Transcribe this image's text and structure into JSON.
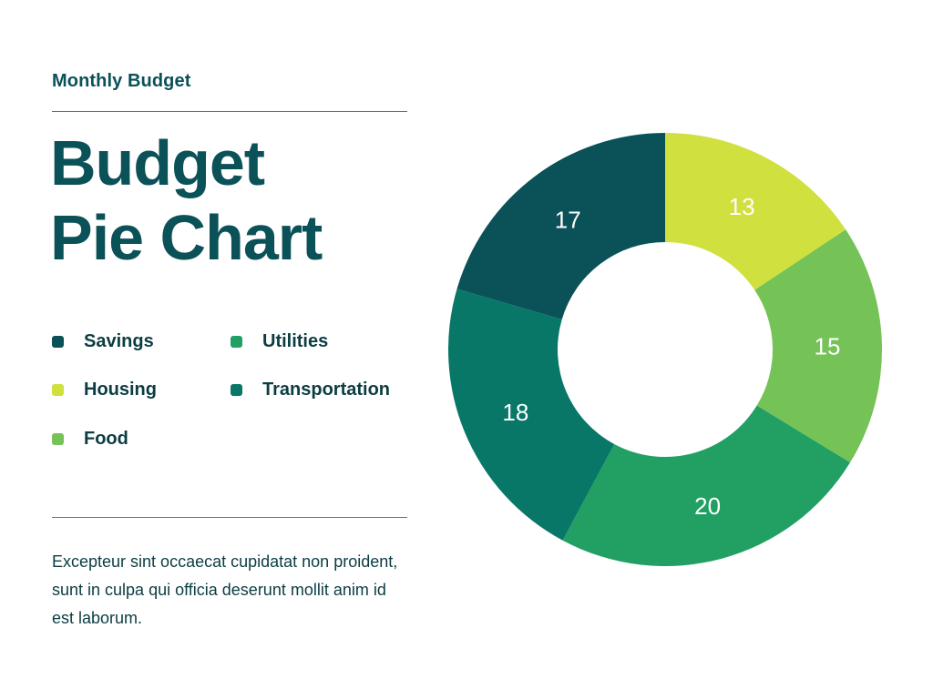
{
  "header": {
    "subtitle": "Monthly Budget",
    "title_line1": "Budget",
    "title_line2": "Pie Chart"
  },
  "description": "Excepteur sint occaecat cupidatat non proident, sunt in culpa qui officia deserunt mollit anim id est laborum.",
  "colors": {
    "Savings": "#0b5158",
    "Housing": "#cfe03f",
    "Food": "#75c257",
    "Utilities": "#22a064",
    "Transportation": "#087767"
  },
  "chart_data": {
    "type": "pie",
    "donut": true,
    "labels": [
      "Housing",
      "Food",
      "Utilities",
      "Transportation",
      "Savings"
    ],
    "values": [
      13,
      15,
      20,
      18,
      17
    ],
    "legend_order": [
      "Savings",
      "Housing",
      "Food",
      "Utilities",
      "Transportation"
    ],
    "data_labels": [
      "13",
      "15",
      "20",
      "18",
      "17"
    ],
    "legend_placement": "left"
  }
}
